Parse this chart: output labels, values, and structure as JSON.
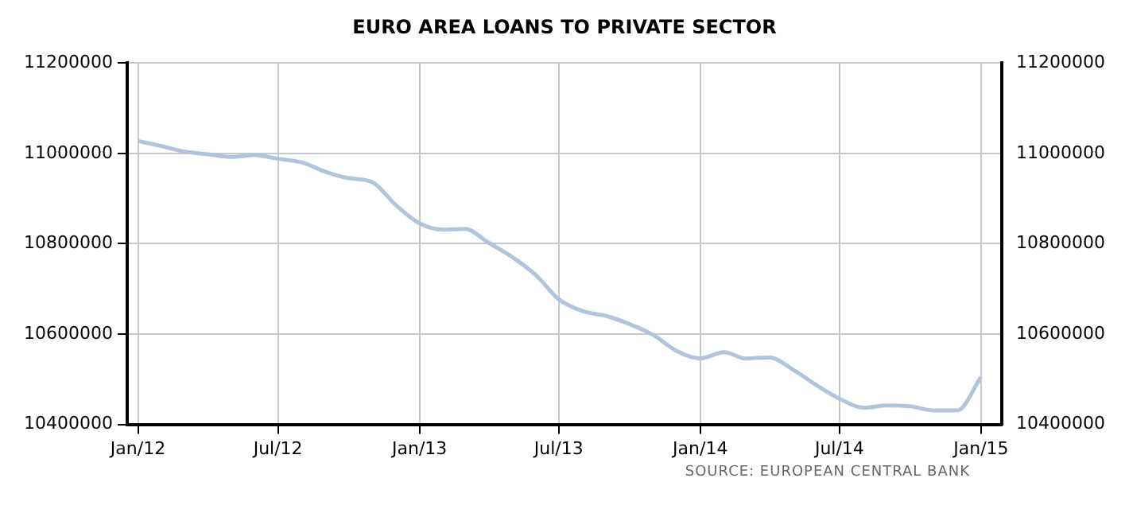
{
  "chart_data": {
    "type": "line",
    "title": "EURO AREA LOANS TO PRIVATE SECTOR",
    "x": [
      "2012-01",
      "2012-02",
      "2012-03",
      "2012-04",
      "2012-05",
      "2012-06",
      "2012-07",
      "2012-08",
      "2012-09",
      "2012-10",
      "2012-11",
      "2012-12",
      "2013-01",
      "2013-02",
      "2013-03",
      "2013-04",
      "2013-05",
      "2013-06",
      "2013-07",
      "2013-08",
      "2013-09",
      "2013-10",
      "2013-11",
      "2013-12",
      "2014-01",
      "2014-02",
      "2014-03",
      "2014-04",
      "2014-05",
      "2014-06",
      "2014-07",
      "2014-08",
      "2014-09",
      "2014-10",
      "2014-11",
      "2014-12",
      "2015-01"
    ],
    "series": [
      {
        "color": "#b0c4de",
        "values": [
          11027000,
          11016000,
          11004000,
          10998000,
          10992000,
          10996000,
          10988000,
          10980000,
          10959000,
          10945000,
          10936000,
          10886000,
          10845000,
          10831000,
          10833000,
          10802000,
          10771000,
          10731000,
          10677000,
          10651000,
          10640000,
          10622000,
          10598000,
          10563000,
          10546000,
          10560000,
          10546000,
          10548000,
          10522000,
          10487000,
          10457000,
          10437000,
          10442000,
          10440000,
          10431000,
          10431000,
          10505000
        ]
      }
    ],
    "xlim": [
      "2011-12-18",
      "2015-01-28"
    ],
    "xticks": [
      {
        "value": "2012-01",
        "label": "Jan/12"
      },
      {
        "value": "2012-07",
        "label": "Jul/12"
      },
      {
        "value": "2013-01",
        "label": "Jan/13"
      },
      {
        "value": "2013-07",
        "label": "Jul/13"
      },
      {
        "value": "2014-01",
        "label": "Jan/14"
      },
      {
        "value": "2014-07",
        "label": "Jul/14"
      },
      {
        "value": "2015-01",
        "label": "Jan/15"
      }
    ],
    "ylim": [
      10400000,
      11200000
    ],
    "yticks": [
      10400000,
      10600000,
      10800000,
      11000000,
      11200000
    ],
    "y2lim": [
      10400000,
      11200000
    ],
    "y2ticks": [
      10400000,
      10600000,
      10800000,
      11000000,
      11200000
    ],
    "grid": true,
    "legend": false,
    "marker": "none",
    "line_style": "solid",
    "annotations": [
      "SOURCE: EUROPEAN CENTRAL BANK"
    ]
  }
}
